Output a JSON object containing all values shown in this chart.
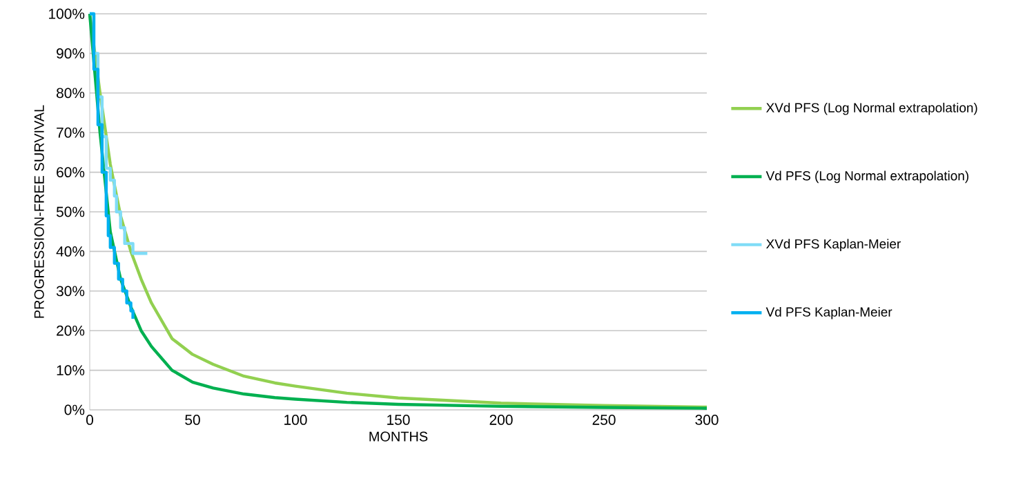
{
  "chart_data": {
    "type": "line",
    "xlabel": "MONTHS",
    "ylabel": "PROGRESSION-FREE  SURVIVAL",
    "xlim": [
      0,
      300
    ],
    "xticks": [
      0,
      50,
      100,
      150,
      200,
      250,
      300
    ],
    "ylim": [
      0,
      100
    ],
    "yticks": [
      {
        "value": 0,
        "label": "0%"
      },
      {
        "value": 10,
        "label": "10%"
      },
      {
        "value": 20,
        "label": "20%"
      },
      {
        "value": 30,
        "label": "30%"
      },
      {
        "value": 40,
        "label": "40%"
      },
      {
        "value": 50,
        "label": "50%"
      },
      {
        "value": 60,
        "label": "60%"
      },
      {
        "value": 70,
        "label": "70%"
      },
      {
        "value": 80,
        "label": "80%"
      },
      {
        "value": 90,
        "label": "90%"
      },
      {
        "value": 100,
        "label": "100%"
      }
    ],
    "grid": "y",
    "legend": "right",
    "marker": "none",
    "line_style": "solid",
    "series": [
      {
        "name": "XVd PFS (Log Normal extrapolation)",
        "color": "#92d050",
        "x": [
          0,
          5,
          10,
          15,
          20,
          25,
          30,
          40,
          50,
          60,
          75,
          90,
          100,
          125,
          150,
          200,
          250,
          300
        ],
        "values": [
          100,
          80,
          62,
          49,
          40,
          33,
          27,
          18,
          14,
          11.5,
          8.5,
          6.8,
          6,
          4.2,
          3,
          1.7,
          1.1,
          0.7
        ]
      },
      {
        "name": "Vd PFS (Log Normal extrapolation)",
        "color": "#00b050",
        "x": [
          0,
          5,
          10,
          15,
          20,
          25,
          30,
          40,
          50,
          60,
          75,
          90,
          100,
          125,
          150,
          200,
          250,
          300
        ],
        "values": [
          100,
          70,
          45,
          33,
          26,
          20,
          16,
          10,
          7,
          5.5,
          4,
          3.1,
          2.7,
          1.9,
          1.4,
          0.9,
          0.6,
          0.4
        ]
      },
      {
        "name": "XVd PFS Kaplan-Meier",
        "type": "step",
        "color": "#7fdcf7",
        "x": [
          0,
          2,
          4,
          6,
          8,
          10,
          12,
          13,
          15,
          17,
          21,
          28
        ],
        "values": [
          100,
          90,
          79,
          69,
          61,
          58,
          54,
          50,
          46,
          42,
          39.5,
          39.5
        ]
      },
      {
        "name": "Vd PFS Kaplan-Meier",
        "type": "step",
        "color": "#00b0f0",
        "x": [
          0,
          2,
          4,
          6,
          8,
          9,
          10,
          12,
          14,
          16,
          18,
          20,
          21
        ],
        "values": [
          100,
          86,
          72,
          60,
          49,
          44,
          41,
          37,
          33,
          30,
          27,
          25,
          23
        ]
      }
    ]
  }
}
